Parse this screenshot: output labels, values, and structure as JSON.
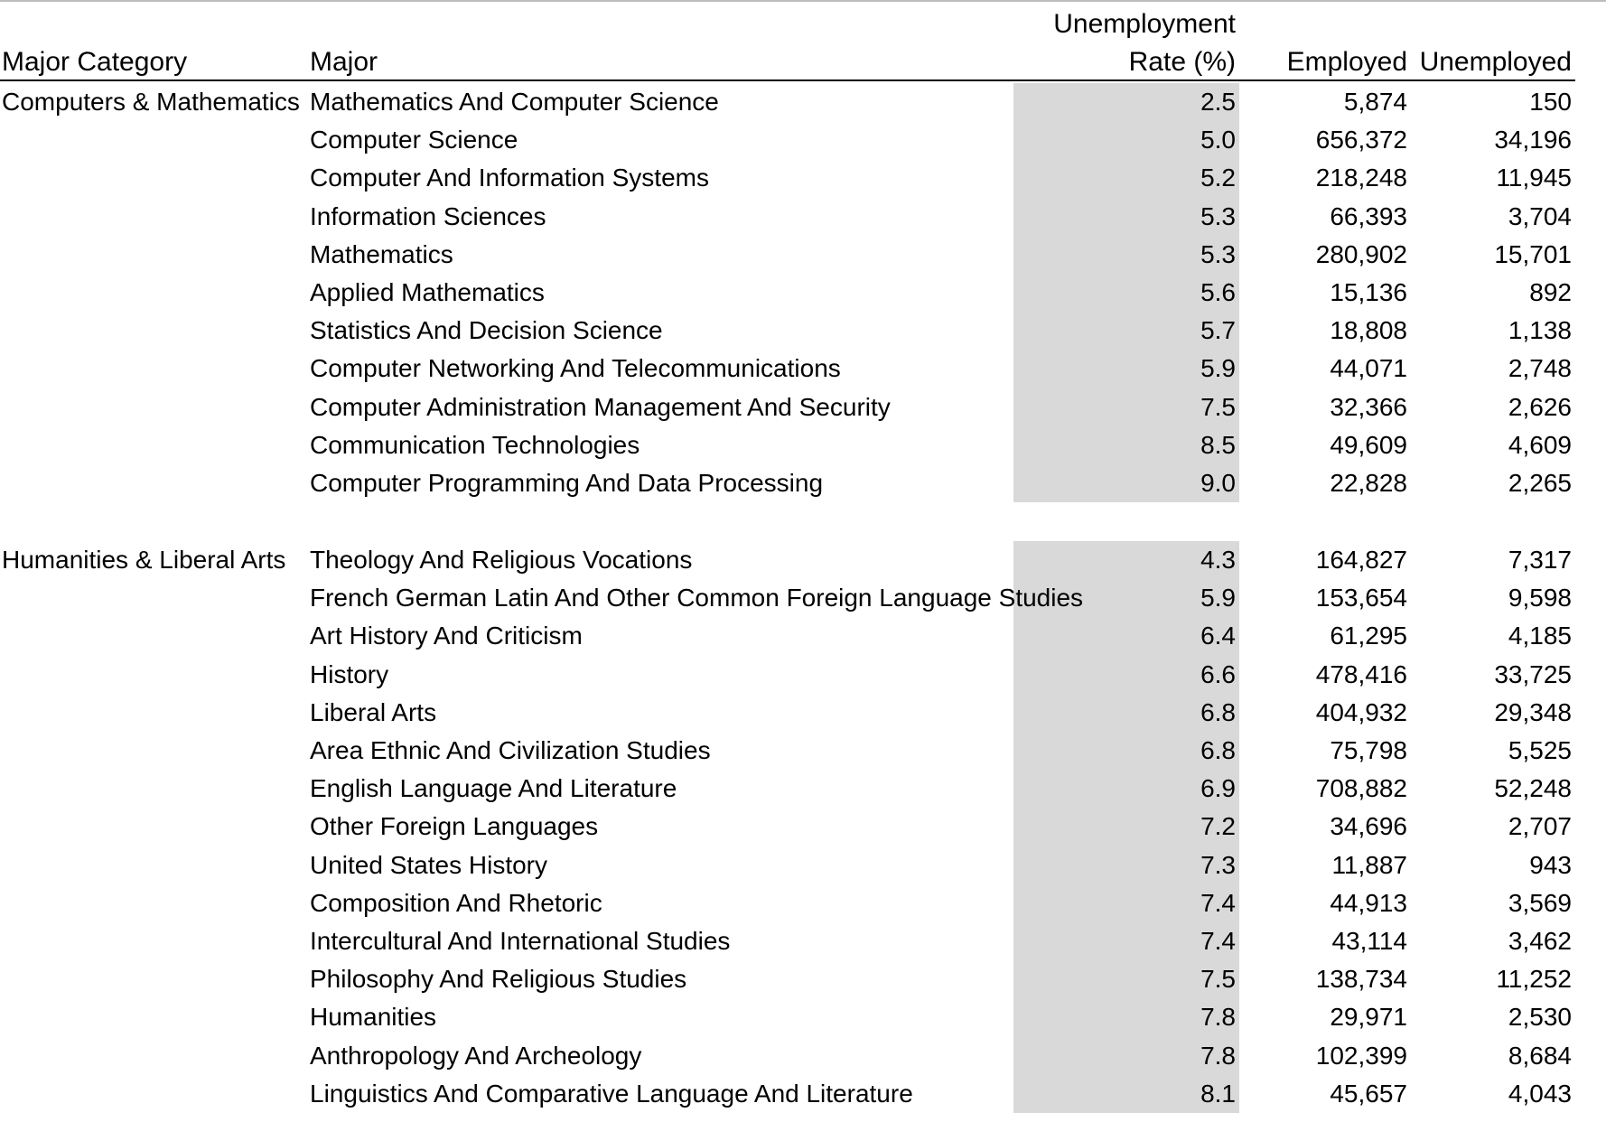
{
  "headers": {
    "category": "Major Category",
    "major": "Major",
    "rate_line1": "Unemployment",
    "rate_line2": "Rate (%)",
    "employed": "Employed",
    "unemployed": "Unemployed"
  },
  "groups": [
    {
      "category": "Computers & Mathematics",
      "rows": [
        {
          "major": "Mathematics And Computer Science",
          "rate": "2.5",
          "employed": "5,874",
          "unemployed": "150"
        },
        {
          "major": "Computer Science",
          "rate": "5.0",
          "employed": "656,372",
          "unemployed": "34,196"
        },
        {
          "major": "Computer And Information Systems",
          "rate": "5.2",
          "employed": "218,248",
          "unemployed": "11,945"
        },
        {
          "major": "Information Sciences",
          "rate": "5.3",
          "employed": "66,393",
          "unemployed": "3,704"
        },
        {
          "major": "Mathematics",
          "rate": "5.3",
          "employed": "280,902",
          "unemployed": "15,701"
        },
        {
          "major": "Applied Mathematics",
          "rate": "5.6",
          "employed": "15,136",
          "unemployed": "892"
        },
        {
          "major": "Statistics And Decision Science",
          "rate": "5.7",
          "employed": "18,808",
          "unemployed": "1,138"
        },
        {
          "major": "Computer Networking And Telecommunications",
          "rate": "5.9",
          "employed": "44,071",
          "unemployed": "2,748"
        },
        {
          "major": "Computer Administration Management And Security",
          "rate": "7.5",
          "employed": "32,366",
          "unemployed": "2,626"
        },
        {
          "major": "Communication Technologies",
          "rate": "8.5",
          "employed": "49,609",
          "unemployed": "4,609"
        },
        {
          "major": "Computer Programming And Data Processing",
          "rate": "9.0",
          "employed": "22,828",
          "unemployed": "2,265"
        }
      ]
    },
    {
      "category": "Humanities & Liberal Arts",
      "rows": [
        {
          "major": "Theology And Religious Vocations",
          "rate": "4.3",
          "employed": "164,827",
          "unemployed": "7,317"
        },
        {
          "major": "French German Latin And Other Common Foreign Language Studies",
          "rate": "5.9",
          "employed": "153,654",
          "unemployed": "9,598"
        },
        {
          "major": "Art History And Criticism",
          "rate": "6.4",
          "employed": "61,295",
          "unemployed": "4,185"
        },
        {
          "major": "History",
          "rate": "6.6",
          "employed": "478,416",
          "unemployed": "33,725"
        },
        {
          "major": "Liberal Arts",
          "rate": "6.8",
          "employed": "404,932",
          "unemployed": "29,348"
        },
        {
          "major": "Area Ethnic And Civilization Studies",
          "rate": "6.8",
          "employed": "75,798",
          "unemployed": "5,525"
        },
        {
          "major": "English Language And Literature",
          "rate": "6.9",
          "employed": "708,882",
          "unemployed": "52,248"
        },
        {
          "major": "Other Foreign Languages",
          "rate": "7.2",
          "employed": "34,696",
          "unemployed": "2,707"
        },
        {
          "major": "United States History",
          "rate": "7.3",
          "employed": "11,887",
          "unemployed": "943"
        },
        {
          "major": "Composition And Rhetoric",
          "rate": "7.4",
          "employed": "44,913",
          "unemployed": "3,569"
        },
        {
          "major": "Intercultural And International Studies",
          "rate": "7.4",
          "employed": "43,114",
          "unemployed": "3,462"
        },
        {
          "major": "Philosophy And Religious Studies",
          "rate": "7.5",
          "employed": "138,734",
          "unemployed": "11,252"
        },
        {
          "major": "Humanities",
          "rate": "7.8",
          "employed": "29,971",
          "unemployed": "2,530"
        },
        {
          "major": "Anthropology And Archeology",
          "rate": "7.8",
          "employed": "102,399",
          "unemployed": "8,684"
        },
        {
          "major": "Linguistics And Comparative Language And Literature",
          "rate": "8.1",
          "employed": "45,657",
          "unemployed": "4,043"
        }
      ]
    }
  ],
  "colors": {
    "rate_column_shade": "#d9d9d9",
    "top_rule": "#bdbdbd",
    "header_rule": "#000000"
  }
}
